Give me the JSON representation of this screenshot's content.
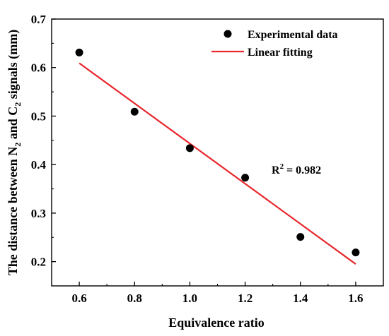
{
  "chart_data": {
    "type": "scatter",
    "xlabel": "Equivalence ratio",
    "ylabel": {
      "prefix": "The distance between  N",
      "sub1": "2",
      "mid": " and C",
      "sub2": "2",
      "suffix": " signals (mm)"
    },
    "xlim": [
      0.5,
      1.7
    ],
    "ylim": [
      0.15,
      0.7
    ],
    "x_ticks": [
      "0.6",
      "0.8",
      "1.0",
      "1.2",
      "1.4",
      "1.6"
    ],
    "y_ticks": [
      "0.2",
      "0.3",
      "0.4",
      "0.5",
      "0.6",
      "0.7"
    ],
    "x": [
      0.6,
      0.8,
      1.0,
      1.2,
      1.4,
      1.6
    ],
    "series": [
      {
        "name": "Experimental data",
        "style": "markers",
        "color": "#000000",
        "y": [
          0.631,
          0.509,
          0.434,
          0.373,
          0.251,
          0.219
        ]
      },
      {
        "name": "Linear fitting",
        "style": "line",
        "color": "#e8262c",
        "x": [
          0.6,
          1.6
        ],
        "y": [
          0.609,
          0.195
        ]
      }
    ],
    "legend_position": "top-right",
    "annotation": {
      "base": "R",
      "sup": "2",
      "rest": " = 0.982",
      "x": 1.2,
      "y": 0.402
    },
    "grid": false
  }
}
